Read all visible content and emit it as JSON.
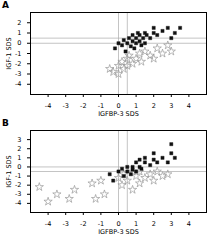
{
  "chart_data": [
    {
      "type": "scatter",
      "title": "A",
      "xlabel": "IGFBP-3 SDS",
      "ylabel": "IGF-1 SDS",
      "xlim": [
        -5,
        5
      ],
      "ylim": [
        -5,
        3
      ],
      "xticks": [
        -4,
        -3,
        -2,
        -1,
        0,
        1,
        2,
        3,
        4
      ],
      "yticks": [
        -4,
        -3,
        -2,
        -1,
        0,
        1,
        2
      ],
      "reference_lines": {
        "x": [
          0.0,
          0.5
        ],
        "y": [
          0.0,
          0.5
        ],
        "color": "#aaaaaa"
      },
      "series": [
        {
          "color": "#999999",
          "marker": "open_star",
          "x": [
            -0.5,
            -0.3,
            0.0,
            0.0,
            0.2,
            0.3,
            0.5,
            0.5,
            0.6,
            0.8,
            1.0,
            1.2,
            1.3,
            1.5,
            1.8,
            2.0,
            2.2,
            2.5,
            2.8,
            3.0
          ],
          "values": [
            -2.5,
            -2.8,
            -2.2,
            -3.0,
            -1.8,
            -2.5,
            -1.5,
            -2.2,
            -1.2,
            -2.0,
            -1.5,
            -1.0,
            -1.8,
            -0.8,
            -1.2,
            -1.5,
            -0.5,
            -1.0,
            -0.2,
            -0.8
          ]
        },
        {
          "color": "#111111",
          "marker": "square",
          "x": [
            -0.2,
            0.0,
            0.2,
            0.3,
            0.4,
            0.5,
            0.6,
            0.7,
            0.8,
            0.8,
            0.9,
            1.0,
            1.0,
            1.1,
            1.2,
            1.2,
            1.3,
            1.4,
            1.5,
            1.5,
            1.6,
            1.8,
            2.0,
            2.0,
            2.2,
            2.5,
            2.8,
            3.0,
            3.2,
            3.5
          ],
          "values": [
            -0.5,
            0.0,
            -0.2,
            0.3,
            -0.8,
            0.0,
            0.5,
            -0.3,
            0.2,
            0.8,
            -0.5,
            0.0,
            0.5,
            1.0,
            0.2,
            0.8,
            -0.2,
            0.5,
            0.0,
            1.0,
            0.8,
            0.5,
            1.0,
            1.5,
            0.8,
            1.2,
            1.5,
            0.5,
            1.0,
            1.5
          ]
        }
      ]
    },
    {
      "type": "scatter",
      "title": "B",
      "xlabel": "IGFBP-3 SDS",
      "ylabel": "IGF-1 SDS",
      "xlim": [
        -5,
        5
      ],
      "ylim": [
        -5,
        4
      ],
      "xticks": [
        -4,
        -3,
        -2,
        -1,
        0,
        1,
        2,
        3,
        4
      ],
      "yticks": [
        -4,
        -3,
        -2,
        -1,
        0,
        1,
        2,
        3
      ],
      "reference_lines": {
        "x": [
          0.0,
          0.5
        ],
        "y": [
          -0.5,
          0.0
        ],
        "color": "#aaaaaa"
      },
      "series": [
        {
          "color": "#999999",
          "marker": "open_star",
          "x": [
            -4.5,
            -4.0,
            -3.5,
            -2.8,
            -2.5,
            -1.5,
            -1.3,
            -1.0,
            -0.8,
            0.0,
            0.2,
            0.3,
            0.5,
            0.8,
            0.8,
            1.0,
            1.2,
            1.2,
            1.5,
            1.8,
            2.0,
            2.2,
            2.5,
            2.8
          ],
          "values": [
            -2.2,
            -3.8,
            -3.0,
            -3.5,
            -2.5,
            -1.8,
            -3.5,
            -1.5,
            -3.0,
            -1.2,
            -2.0,
            -0.8,
            -1.5,
            -2.5,
            -0.5,
            -1.0,
            -1.8,
            -0.5,
            -1.2,
            -0.8,
            -1.5,
            -0.5,
            -1.0,
            -0.8
          ]
        },
        {
          "color": "#111111",
          "marker": "square",
          "x": [
            -0.5,
            -0.3,
            0.0,
            0.2,
            0.3,
            0.5,
            0.5,
            0.7,
            0.8,
            0.8,
            1.0,
            1.0,
            1.2,
            1.2,
            1.3,
            1.5,
            1.5,
            1.8,
            2.0,
            2.0,
            2.2,
            2.5,
            2.8,
            3.0,
            3.0,
            3.2
          ],
          "values": [
            -0.8,
            -1.5,
            -0.5,
            -0.2,
            -1.0,
            -0.5,
            0.0,
            -0.8,
            0.0,
            -0.3,
            0.5,
            -0.5,
            0.0,
            0.8,
            -0.2,
            0.5,
            1.0,
            0.2,
            0.8,
            1.5,
            0.5,
            1.0,
            0.5,
            1.5,
            2.5,
            1.0
          ]
        }
      ]
    }
  ]
}
